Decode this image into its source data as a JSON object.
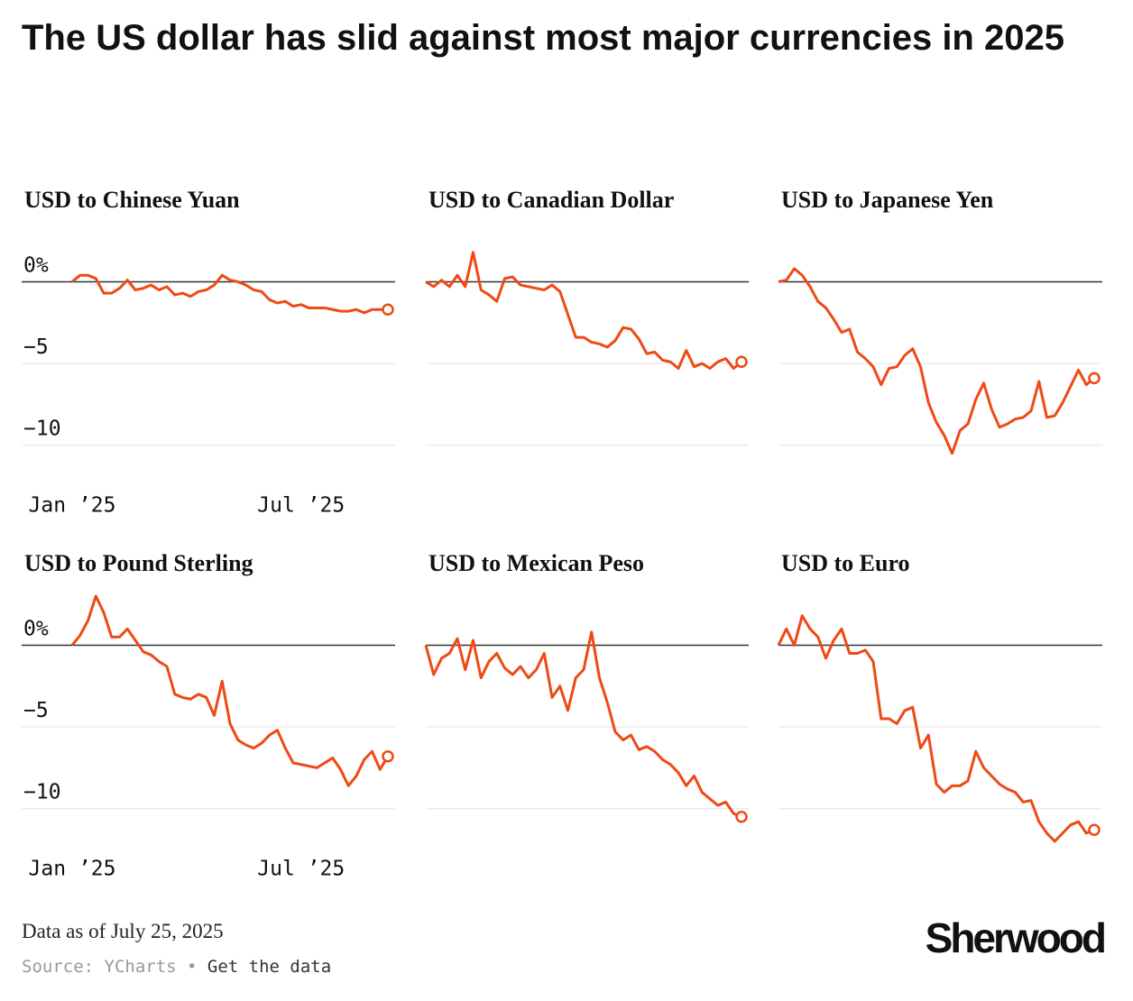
{
  "title": "The US dollar has slid against most major currencies in 2025",
  "chart_data": [
    {
      "type": "line",
      "title": "USD to Chinese Yuan",
      "color": "#ee4a16",
      "values": [
        0,
        0.4,
        0.4,
        0.2,
        -0.7,
        -0.7,
        -0.4,
        0.1,
        -0.5,
        -0.4,
        -0.2,
        -0.5,
        -0.3,
        -0.8,
        -0.7,
        -0.9,
        -0.6,
        -0.5,
        -0.2,
        0.4,
        0.1,
        0.0,
        -0.2,
        -0.5,
        -0.6,
        -1.1,
        -1.3,
        -1.2,
        -1.5,
        -1.4,
        -1.6,
        -1.6,
        -1.6,
        -1.7,
        -1.8,
        -1.8,
        -1.7,
        -1.9,
        -1.7,
        -1.7,
        -1.7
      ],
      "xlim": [
        0,
        40
      ],
      "xticks": [
        {
          "value": 0,
          "label": "Jan ’25"
        },
        {
          "value": 29,
          "label": "Jul ’25"
        }
      ],
      "ylim": [
        -12.5,
        3.5
      ],
      "yticks": [
        {
          "value": 0,
          "label": "0%"
        },
        {
          "value": -5,
          "label": "−5"
        },
        {
          "value": -10,
          "label": "−10"
        }
      ]
    },
    {
      "type": "line",
      "title": "USD to Canadian Dollar",
      "color": "#ee4a16",
      "values": [
        0,
        -0.3,
        0.1,
        -0.3,
        0.4,
        -0.3,
        1.8,
        -0.5,
        -0.8,
        -1.2,
        0.2,
        0.3,
        -0.2,
        -0.3,
        -0.4,
        -0.5,
        -0.2,
        -0.6,
        -2.0,
        -3.4,
        -3.4,
        -3.7,
        -3.8,
        -4.0,
        -3.6,
        -2.8,
        -2.9,
        -3.5,
        -4.4,
        -4.3,
        -4.8,
        -4.9,
        -5.3,
        -4.2,
        -5.2,
        -5.0,
        -5.3,
        -4.9,
        -4.7,
        -5.3,
        -4.9
      ],
      "xlim": [
        0,
        40
      ],
      "ylim": [
        -12.5,
        3.5
      ],
      "yticks": [
        0,
        -5,
        -10
      ]
    },
    {
      "type": "line",
      "title": "USD to Japanese Yen",
      "color": "#ee4a16",
      "values": [
        0,
        0.1,
        0.8,
        0.4,
        -0.3,
        -1.2,
        -1.6,
        -2.3,
        -3.1,
        -2.9,
        -4.3,
        -4.7,
        -5.2,
        -6.3,
        -5.3,
        -5.2,
        -4.5,
        -4.1,
        -5.2,
        -7.4,
        -8.6,
        -9.4,
        -10.5,
        -9.1,
        -8.7,
        -7.2,
        -6.2,
        -7.8,
        -8.9,
        -8.7,
        -8.4,
        -8.3,
        -7.9,
        -6.1,
        -8.3,
        -8.2,
        -7.4,
        -6.4,
        -5.4,
        -6.3,
        -5.9
      ],
      "xlim": [
        0,
        40
      ],
      "ylim": [
        -12.5,
        3.5
      ],
      "yticks": [
        0,
        -5,
        -10
      ]
    },
    {
      "type": "line",
      "title": "USD to Pound Sterling",
      "color": "#ee4a16",
      "values": [
        0,
        0.6,
        1.5,
        3.0,
        2.0,
        0.5,
        0.5,
        1.0,
        0.3,
        -0.4,
        -0.6,
        -1.0,
        -1.3,
        -3.0,
        -3.2,
        -3.3,
        -3.0,
        -3.2,
        -4.3,
        -2.2,
        -4.8,
        -5.8,
        -6.1,
        -6.3,
        -6.0,
        -5.5,
        -5.2,
        -6.3,
        -7.2,
        -7.3,
        -7.4,
        -7.5,
        -7.2,
        -6.9,
        -7.6,
        -8.6,
        -8.0,
        -7.0,
        -6.5,
        -7.6,
        -6.8
      ],
      "xlim": [
        0,
        40
      ],
      "xticks": [
        {
          "value": 0,
          "label": "Jan ’25"
        },
        {
          "value": 29,
          "label": "Jul ’25"
        }
      ],
      "ylim": [
        -12.5,
        3.5
      ],
      "yticks": [
        {
          "value": 0,
          "label": "0%"
        },
        {
          "value": -5,
          "label": "−5"
        },
        {
          "value": -10,
          "label": "−10"
        }
      ]
    },
    {
      "type": "line",
      "title": "USD to Mexican Peso",
      "color": "#ee4a16",
      "values": [
        0,
        -1.8,
        -0.8,
        -0.5,
        0.4,
        -1.5,
        0.3,
        -2.0,
        -1.0,
        -0.5,
        -1.4,
        -1.8,
        -1.3,
        -2.0,
        -1.5,
        -0.5,
        -3.2,
        -2.5,
        -4.0,
        -2.0,
        -1.5,
        0.8,
        -2.0,
        -3.5,
        -5.3,
        -5.8,
        -5.5,
        -6.4,
        -6.2,
        -6.5,
        -7.0,
        -7.3,
        -7.8,
        -8.6,
        -8.0,
        -9.0,
        -9.4,
        -9.8,
        -9.6,
        -10.3,
        -10.5
      ],
      "xlim": [
        0,
        40
      ],
      "ylim": [
        -12.5,
        3.5
      ],
      "yticks": [
        0,
        -5,
        -10
      ]
    },
    {
      "type": "line",
      "title": "USD to Euro",
      "color": "#ee4a16",
      "values": [
        0,
        1.0,
        0,
        1.8,
        1.0,
        0.5,
        -0.8,
        0.3,
        1.0,
        -0.5,
        -0.5,
        -0.3,
        -1.0,
        -4.5,
        -4.5,
        -4.8,
        -4.0,
        -3.8,
        -6.3,
        -5.5,
        -8.5,
        -9.0,
        -8.6,
        -8.6,
        -8.3,
        -6.5,
        -7.5,
        -8.0,
        -8.5,
        -8.8,
        -9.0,
        -9.6,
        -9.5,
        -10.8,
        -11.5,
        -12.0,
        -11.5,
        -11.0,
        -10.8,
        -11.5,
        -11.3
      ],
      "xlim": [
        0,
        40
      ],
      "ylim": [
        -12.5,
        3.5
      ],
      "yticks": [
        0,
        -5,
        -10
      ]
    }
  ],
  "footer": {
    "note": "Data as of July 25, 2025",
    "source": "Source: YCharts",
    "link": "Get the data",
    "logo": "Sherwood"
  }
}
